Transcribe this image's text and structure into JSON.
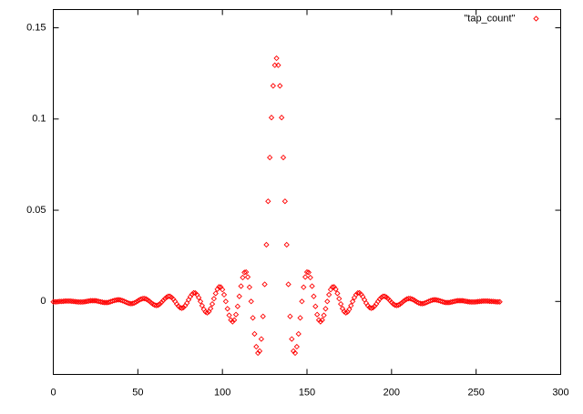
{
  "chart_data": {
    "type": "scatter",
    "x": [
      0,
      1,
      2,
      3,
      4,
      5,
      6,
      7,
      8,
      9,
      10,
      11,
      12,
      13,
      14,
      15,
      16,
      17,
      18,
      19,
      20,
      21,
      22,
      23,
      24,
      25,
      26,
      27,
      28,
      29,
      30,
      31,
      32,
      33,
      34,
      35,
      36,
      37,
      38,
      39,
      40,
      41,
      42,
      43,
      44,
      45,
      46,
      47,
      48,
      49,
      50,
      51,
      52,
      53,
      54,
      55,
      56,
      57,
      58,
      59,
      60,
      61,
      62,
      63,
      64,
      65,
      66,
      67,
      68,
      69,
      70,
      71,
      72,
      73,
      74,
      75,
      76,
      77,
      78,
      79,
      80,
      81,
      82,
      83,
      84,
      85,
      86,
      87,
      88,
      89,
      90,
      91,
      92,
      93,
      94,
      95,
      96,
      97,
      98,
      99,
      100,
      101,
      102,
      103,
      104,
      105,
      106,
      107,
      108,
      109,
      110,
      111,
      112,
      113,
      114,
      115,
      116,
      117,
      118,
      119,
      120,
      121,
      122,
      123,
      124,
      125,
      126,
      127,
      128,
      129,
      130,
      131,
      132,
      133,
      134,
      135,
      136,
      137,
      138,
      139,
      140,
      141,
      142,
      143,
      144,
      145,
      146,
      147,
      148,
      149,
      150,
      151,
      152,
      153,
      154,
      155,
      156,
      157,
      158,
      159,
      160,
      161,
      162,
      163,
      164,
      165,
      166,
      167,
      168,
      169,
      170,
      171,
      172,
      173,
      174,
      175,
      176,
      177,
      178,
      179,
      180,
      181,
      182,
      183,
      184,
      185,
      186,
      187,
      188,
      189,
      190,
      191,
      192,
      193,
      194,
      195,
      196,
      197,
      198,
      199,
      200,
      201,
      202,
      203,
      204,
      205,
      206,
      207,
      208,
      209,
      210,
      211,
      212,
      213,
      214,
      215,
      216,
      217,
      218,
      219,
      220,
      221,
      222,
      223,
      224,
      225,
      226,
      227,
      228,
      229,
      230,
      231,
      232,
      233,
      234,
      235,
      236,
      237,
      238,
      239,
      240,
      241,
      242,
      243,
      244,
      245,
      246,
      247,
      248,
      249,
      250,
      251,
      252,
      253,
      254,
      255,
      256,
      257,
      258,
      259,
      260,
      261,
      262,
      263,
      264
    ],
    "series": [
      {
        "name": "\"tap_count\"",
        "color": "#ff0000",
        "values": [
          -0.0002,
          -0.0002,
          -0.0002,
          -0.0001,
          0,
          0,
          0.0001,
          0.0002,
          0.0002,
          0.0002,
          0.0002,
          0.0001,
          0,
          -0.0001,
          -0.0002,
          -0.0003,
          -0.0003,
          -0.0003,
          -0.0002,
          -0.0001,
          0.0001,
          0.0002,
          0.0004,
          0.0004,
          0.0004,
          0.0004,
          0.0002,
          0,
          -0.0002,
          -0.0004,
          -0.0006,
          -0.0006,
          -0.0006,
          -0.0004,
          -0.0001,
          0.0002,
          0.0005,
          0.0007,
          0.0009,
          0.0009,
          0.0007,
          0.0004,
          0,
          -0.0004,
          -0.0008,
          -0.0011,
          -0.0012,
          -0.0011,
          -0.0008,
          -0.0003,
          0.0003,
          0.0009,
          0.0013,
          0.0016,
          0.0016,
          0.0013,
          0.0007,
          0,
          -0.0008,
          -0.0015,
          -0.002,
          -0.0022,
          -0.002,
          -0.0014,
          -0.0005,
          0.0005,
          0.0015,
          0.0023,
          0.0028,
          0.0028,
          0.0022,
          0.0013,
          0,
          -0.0014,
          -0.0026,
          -0.0034,
          -0.0037,
          -0.0033,
          -0.0023,
          -0.0009,
          0.0009,
          0.0026,
          0.0039,
          0.0047,
          0.0046,
          0.0037,
          0.0021,
          0,
          -0.0023,
          -0.0043,
          -0.0057,
          -0.0062,
          -0.0056,
          -0.0039,
          -0.0014,
          0.0015,
          0.0044,
          0.0067,
          0.008,
          0.0079,
          0.0065,
          0.0037,
          0,
          -0.004,
          -0.0076,
          -0.0102,
          -0.0111,
          -0.0102,
          -0.0072,
          -0.0027,
          0.0028,
          0.0084,
          0.0131,
          0.0159,
          0.0161,
          0.0134,
          0.0078,
          0,
          -0.009,
          -0.0178,
          -0.0248,
          -0.0283,
          -0.0272,
          -0.0206,
          -0.0082,
          0.0094,
          0.0311,
          0.0549,
          0.0789,
          0.1008,
          0.1182,
          0.1295,
          0.1333,
          0.1295,
          0.1182,
          0.1008,
          0.0789,
          0.0549,
          0.0311,
          0.0094,
          -0.0082,
          -0.0206,
          -0.0272,
          -0.0283,
          -0.0248,
          -0.0178,
          -0.009,
          0,
          0.0078,
          0.0134,
          0.0161,
          0.0159,
          0.0131,
          0.0084,
          0.0028,
          -0.0027,
          -0.0072,
          -0.0102,
          -0.0111,
          -0.0102,
          -0.0076,
          -0.004,
          0,
          0.0037,
          0.0065,
          0.0079,
          0.008,
          0.0067,
          0.0044,
          0.0015,
          -0.0014,
          -0.0039,
          -0.0056,
          -0.0062,
          -0.0057,
          -0.0043,
          -0.0023,
          0,
          0.0021,
          0.0037,
          0.0046,
          0.0047,
          0.0039,
          0.0026,
          0.0009,
          -0.0009,
          -0.0023,
          -0.0033,
          -0.0037,
          -0.0034,
          -0.0026,
          -0.0014,
          0,
          0.0013,
          0.0022,
          0.0028,
          0.0028,
          0.0023,
          0.0015,
          0.0005,
          -0.0005,
          -0.0014,
          -0.002,
          -0.0022,
          -0.002,
          -0.0015,
          -0.0008,
          0,
          0.0007,
          0.0013,
          0.0016,
          0.0016,
          0.0013,
          0.0009,
          0.0003,
          -0.0003,
          -0.0008,
          -0.0011,
          -0.0012,
          -0.0011,
          -0.0008,
          -0.0004,
          0,
          0.0004,
          0.0007,
          0.0009,
          0.0009,
          0.0007,
          0.0005,
          0.0002,
          -0.0001,
          -0.0004,
          -0.0006,
          -0.0006,
          -0.0006,
          -0.0004,
          -0.0002,
          0,
          0.0002,
          0.0004,
          0.0004,
          0.0004,
          0.0004,
          0.0002,
          0.0001,
          -0.0001,
          -0.0002,
          -0.0003,
          -0.0003,
          -0.0003,
          -0.0002,
          -0.0001,
          0,
          0.0001,
          0.0002,
          0.0002,
          0.0002,
          0.0002,
          0.0001,
          0,
          0,
          -0.0001,
          -0.0002,
          -0.0002,
          -0.0002
        ]
      }
    ],
    "xlim": [
      0,
      300
    ],
    "xticks": [
      0,
      50,
      100,
      150,
      200,
      250,
      300
    ],
    "ylim": [
      -0.04,
      0.16
    ],
    "yticks": [
      0,
      0.05,
      0.1,
      0.15
    ],
    "legend": "top-right"
  }
}
